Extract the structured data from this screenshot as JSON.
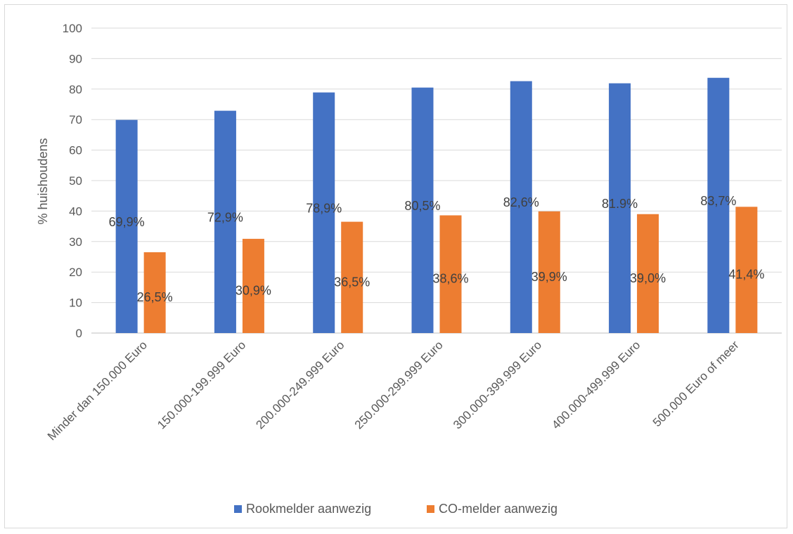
{
  "chart_data": {
    "type": "bar",
    "categories": [
      "Minder dan 150.000 Euro",
      "150.000-199.999 Euro",
      "200.000-249.999 Euro",
      "250.000-299.999 Euro",
      "300.000-399.999 Euro",
      "400.000-499.999 Euro",
      "500.000 Euro of meer"
    ],
    "series": [
      {
        "name": "Rookmelder aanwezig",
        "color": "#4472c4",
        "values": [
          69.9,
          72.9,
          78.9,
          80.5,
          82.6,
          81.9,
          83.7
        ],
        "labels": [
          "69,9%",
          "72,9%",
          "78,9%",
          "80,5%",
          "82,6%",
          "81.9%",
          "83,7%"
        ]
      },
      {
        "name": "CO-melder aanwezig",
        "color": "#ed7d31",
        "values": [
          26.5,
          30.9,
          36.5,
          38.6,
          39.9,
          39.0,
          41.4
        ],
        "labels": [
          "26,5%",
          "30,9%",
          "36,5%",
          "38,6%",
          "39,9%",
          "39,0%",
          "41,4%"
        ]
      }
    ],
    "ylabel": "% huishoudens",
    "xlabel": "",
    "ylim": [
      0,
      100
    ],
    "yticks": [
      "0",
      "10",
      "20",
      "30",
      "40",
      "50",
      "60",
      "70",
      "80",
      "90",
      "100"
    ],
    "grid": true,
    "legend": "bottom"
  }
}
